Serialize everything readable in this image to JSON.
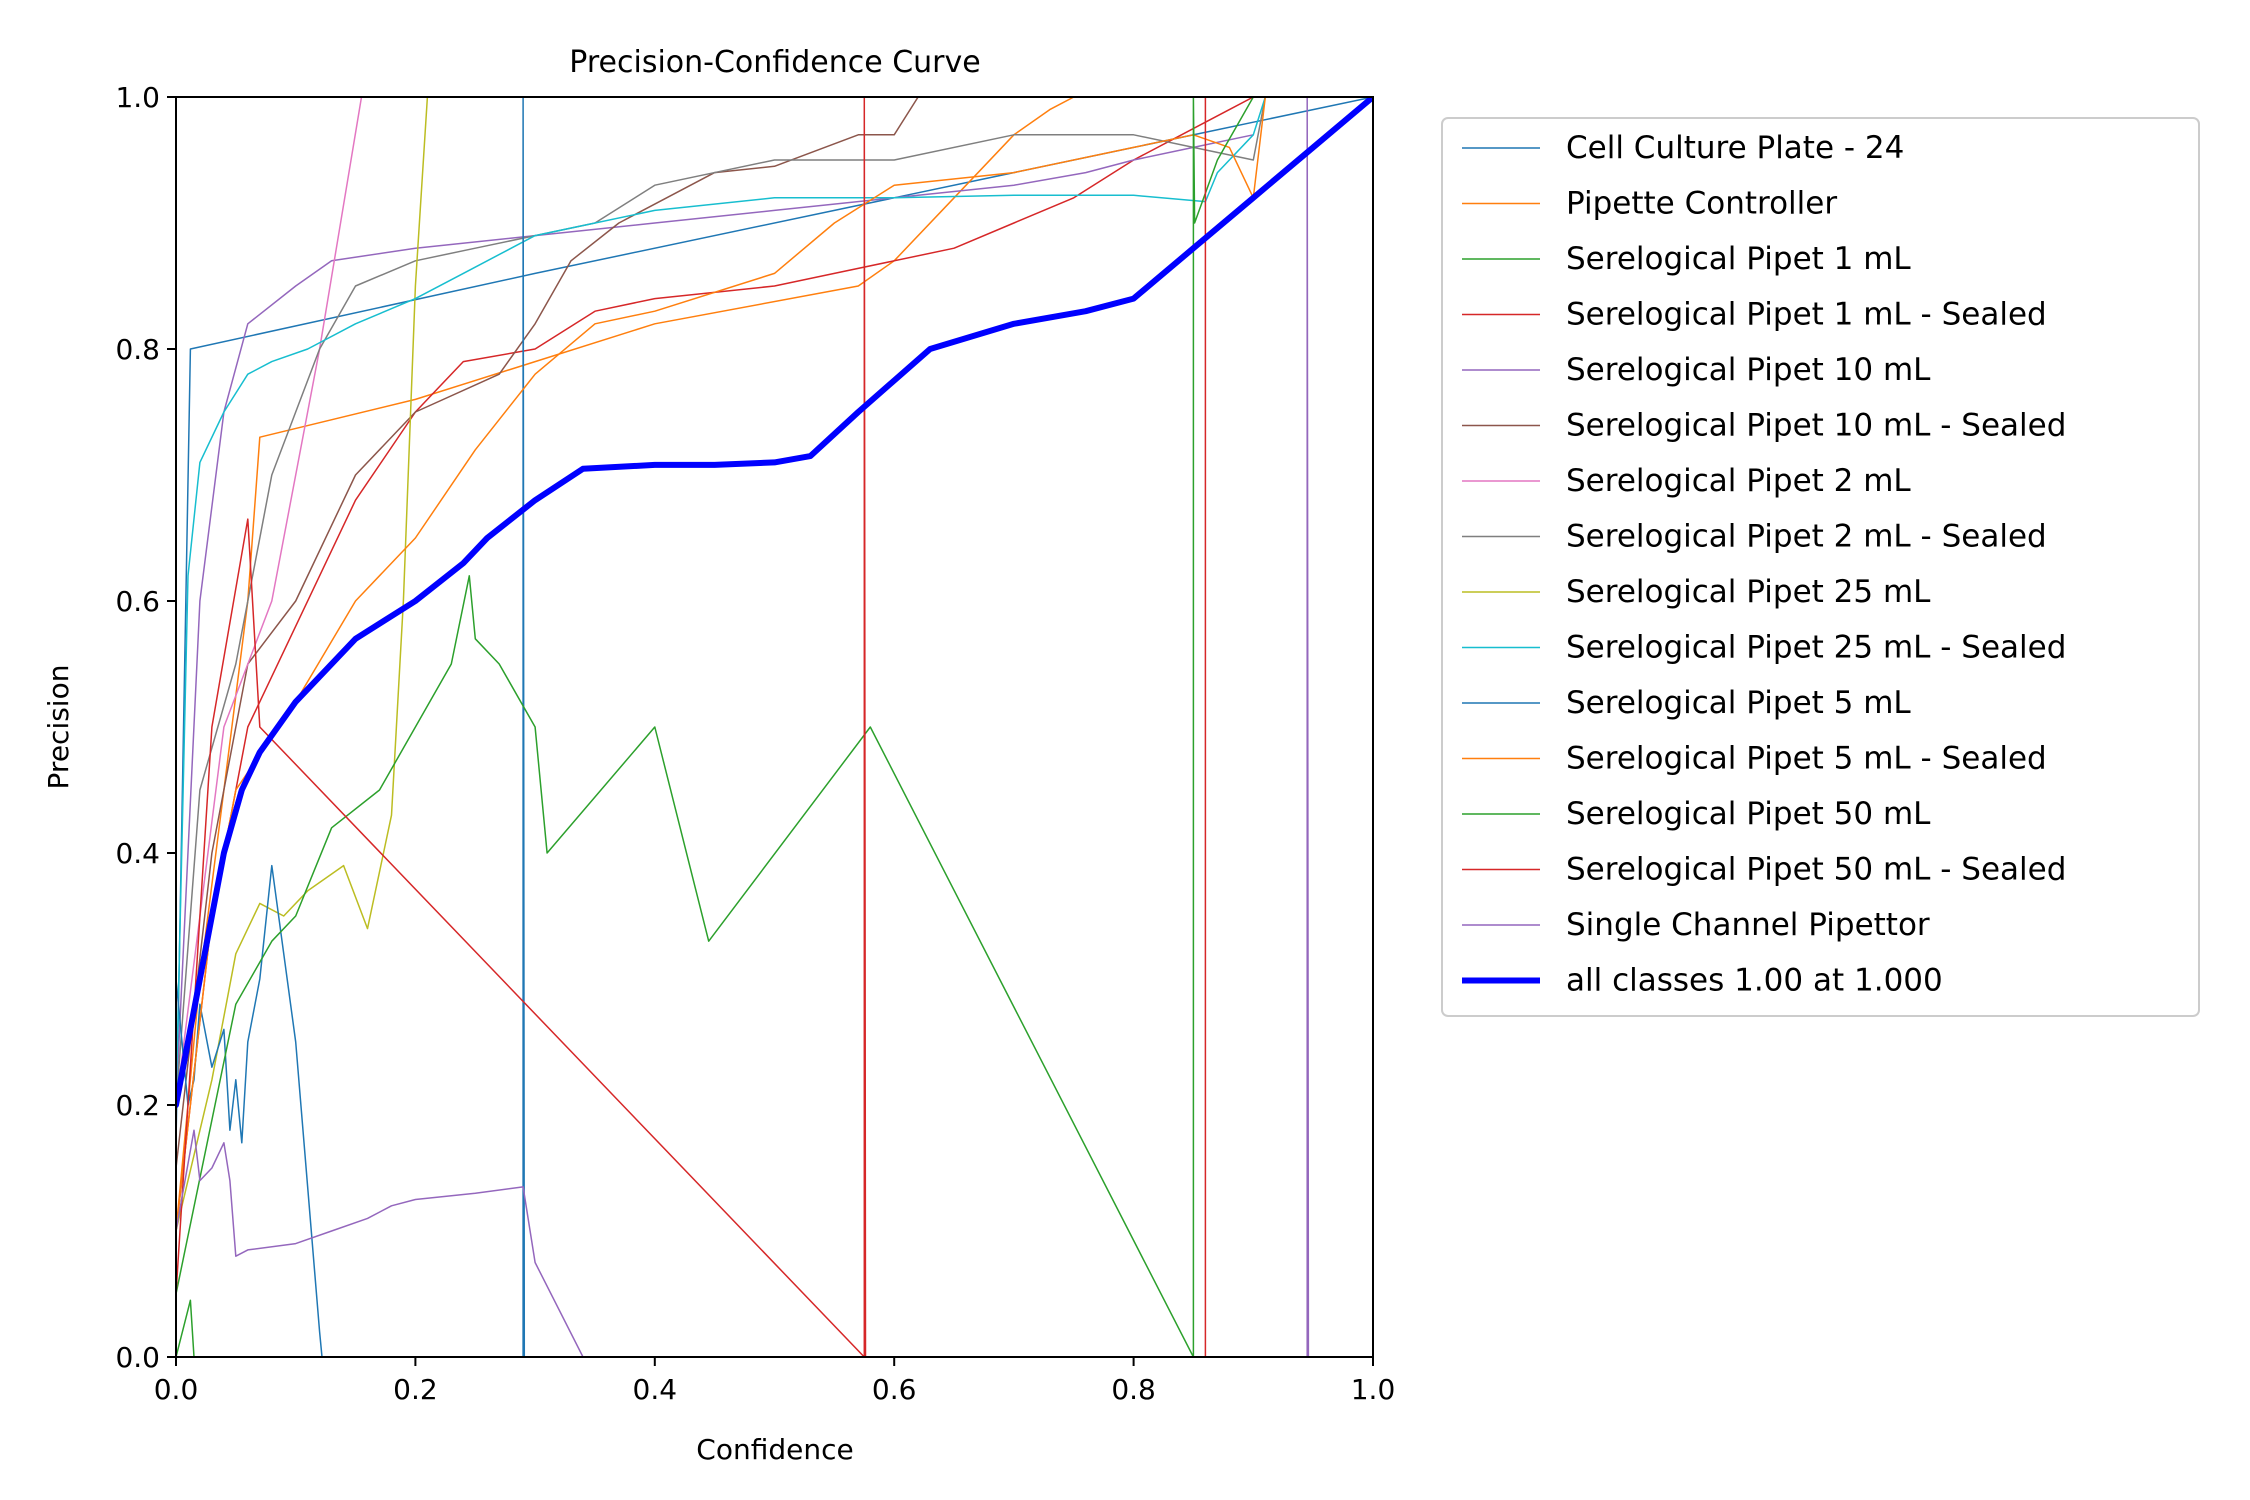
{
  "chart_data": {
    "type": "line",
    "title": "Precision-Confidence Curve",
    "xlabel": "Confidence",
    "ylabel": "Precision",
    "xlim": [
      0,
      1
    ],
    "ylim": [
      0,
      1
    ],
    "xticks": [
      "0.0",
      "0.2",
      "0.4",
      "0.6",
      "0.8",
      "1.0"
    ],
    "yticks": [
      "0.0",
      "0.2",
      "0.4",
      "0.6",
      "0.8",
      "1.0"
    ],
    "grid": false,
    "legend_position": "outside-right",
    "series": [
      {
        "name": "Cell Culture Plate - 24",
        "color": "#1f77b4",
        "width": 1.5,
        "x": [
          0.0,
          0.012,
          0.3,
          0.6,
          0.9,
          1.0
        ],
        "y": [
          0.17,
          0.8,
          0.86,
          0.92,
          0.98,
          1.0
        ]
      },
      {
        "name": "Pipette Controller",
        "color": "#ff7f0e",
        "width": 1.5,
        "x": [
          0.0,
          0.02,
          0.04,
          0.06,
          0.07,
          0.2,
          0.3,
          0.4,
          0.57,
          0.6,
          0.65,
          0.7,
          0.73,
          0.75
        ],
        "y": [
          0.1,
          0.3,
          0.45,
          0.6,
          0.73,
          0.76,
          0.79,
          0.82,
          0.85,
          0.87,
          0.92,
          0.97,
          0.99,
          1.0
        ]
      },
      {
        "name": "Serelogical Pipet 1 mL",
        "color": "#2ca02c",
        "width": 1.5,
        "x": [
          0.0,
          0.012,
          0.015,
          1.0
        ],
        "y": [
          0.0,
          0.045,
          0.0,
          0.0
        ]
      },
      {
        "name": "Serelogical Pipet 1 mL - Sealed",
        "color": "#d62728",
        "width": 1.5,
        "x": [
          0.0,
          0.03,
          0.06,
          0.1,
          0.15,
          0.2,
          0.24,
          0.3,
          0.35,
          0.4,
          0.5,
          0.55,
          0.65,
          0.7,
          0.75,
          0.8,
          0.84,
          0.86,
          0.88,
          0.9
        ],
        "y": [
          0.1,
          0.35,
          0.5,
          0.58,
          0.68,
          0.75,
          0.79,
          0.8,
          0.83,
          0.84,
          0.85,
          0.86,
          0.88,
          0.9,
          0.92,
          0.95,
          0.97,
          0.98,
          0.99,
          1.0
        ]
      },
      {
        "name": "Serelogical Pipet 10 mL",
        "color": "#9467bd",
        "width": 1.5,
        "x": [
          0.0,
          0.02,
          0.04,
          0.06,
          0.1,
          0.13,
          0.2,
          0.3,
          0.4,
          0.5,
          0.6,
          0.7,
          0.76,
          0.8,
          0.85,
          0.9
        ],
        "y": [
          0.2,
          0.6,
          0.75,
          0.82,
          0.85,
          0.87,
          0.88,
          0.89,
          0.9,
          0.91,
          0.92,
          0.93,
          0.94,
          0.95,
          0.96,
          0.97
        ]
      },
      {
        "name": "Serelogical Pipet 10 mL - Sealed",
        "color": "#8c564b",
        "width": 1.5,
        "x": [
          0.0,
          0.03,
          0.06,
          0.1,
          0.15,
          0.2,
          0.27,
          0.3,
          0.33,
          0.37,
          0.45,
          0.5,
          0.57,
          0.6,
          0.62
        ],
        "y": [
          0.15,
          0.4,
          0.55,
          0.6,
          0.7,
          0.75,
          0.78,
          0.82,
          0.87,
          0.9,
          0.94,
          0.945,
          0.97,
          0.97,
          1.0
        ]
      },
      {
        "name": "Serelogical Pipet 2 mL",
        "color": "#e377c2",
        "width": 1.5,
        "x": [
          0.0,
          0.04,
          0.08,
          0.12,
          0.155
        ],
        "y": [
          0.2,
          0.5,
          0.6,
          0.8,
          1.0
        ]
      },
      {
        "name": "Serelogical Pipet 2 mL - Sealed",
        "color": "#7f7f7f",
        "width": 1.5,
        "x": [
          0.0,
          0.02,
          0.05,
          0.08,
          0.1,
          0.12,
          0.15,
          0.2,
          0.25,
          0.3,
          0.35,
          0.4,
          0.5,
          0.6,
          0.7,
          0.75,
          0.8,
          0.85,
          0.9,
          0.91
        ],
        "y": [
          0.2,
          0.45,
          0.55,
          0.7,
          0.75,
          0.8,
          0.85,
          0.87,
          0.88,
          0.89,
          0.9,
          0.93,
          0.95,
          0.95,
          0.97,
          0.97,
          0.97,
          0.96,
          0.95,
          1.0
        ]
      },
      {
        "name": "Serelogical Pipet 25 mL",
        "color": "#bcbd22",
        "width": 1.5,
        "x": [
          0.0,
          0.03,
          0.05,
          0.07,
          0.09,
          0.11,
          0.14,
          0.16,
          0.18,
          0.19,
          0.2,
          0.21
        ],
        "y": [
          0.1,
          0.22,
          0.32,
          0.36,
          0.35,
          0.37,
          0.39,
          0.34,
          0.43,
          0.6,
          0.85,
          1.0
        ]
      },
      {
        "name": "Serelogical Pipet 25 mL - Sealed",
        "color": "#17becf",
        "width": 1.5,
        "x": [
          0.0,
          0.01,
          0.02,
          0.04,
          0.06,
          0.08,
          0.11,
          0.15,
          0.2,
          0.24,
          0.28,
          0.3,
          0.4,
          0.5,
          0.6,
          0.7,
          0.8,
          0.86,
          0.87,
          0.9,
          0.91
        ],
        "y": [
          0.2,
          0.62,
          0.71,
          0.75,
          0.78,
          0.79,
          0.8,
          0.82,
          0.84,
          0.86,
          0.88,
          0.89,
          0.91,
          0.92,
          0.92,
          0.922,
          0.922,
          0.917,
          0.94,
          0.97,
          1.0
        ]
      },
      {
        "name": "Serelogical Pipet 5 mL",
        "color": "#1f77b4",
        "width": 1.5,
        "x": [
          0.0,
          0.005,
          0.01,
          0.015,
          0.02,
          0.03,
          0.04,
          0.045,
          0.05,
          0.055,
          0.06,
          0.07,
          0.08,
          0.1,
          0.12,
          0.122,
          0.29,
          0.29,
          0.291,
          1.0
        ],
        "y": [
          0.3,
          0.25,
          0.2,
          0.22,
          0.28,
          0.23,
          0.26,
          0.18,
          0.22,
          0.17,
          0.25,
          0.3,
          0.39,
          0.25,
          0.02,
          0.0,
          0.0,
          1.0,
          0.0,
          0.0
        ]
      },
      {
        "name": "Serelogical Pipet 5 mL - Sealed",
        "color": "#ff7f0e",
        "width": 1.5,
        "x": [
          0.0,
          0.03,
          0.05,
          0.1,
          0.15,
          0.2,
          0.25,
          0.3,
          0.35,
          0.4,
          0.5,
          0.55,
          0.6,
          0.7,
          0.8,
          0.85,
          0.88,
          0.9,
          0.91
        ],
        "y": [
          0.1,
          0.35,
          0.45,
          0.52,
          0.6,
          0.65,
          0.72,
          0.78,
          0.82,
          0.83,
          0.86,
          0.9,
          0.93,
          0.94,
          0.96,
          0.97,
          0.96,
          0.92,
          1.0
        ]
      },
      {
        "name": "Serelogical Pipet 50 mL",
        "color": "#2ca02c",
        "width": 1.5,
        "x": [
          0.0,
          0.05,
          0.08,
          0.1,
          0.13,
          0.17,
          0.2,
          0.23,
          0.245,
          0.25,
          0.27,
          0.3,
          0.31,
          0.4,
          0.445,
          0.58,
          0.85,
          0.85,
          0.851,
          0.87,
          0.9
        ],
        "y": [
          0.05,
          0.28,
          0.33,
          0.35,
          0.42,
          0.45,
          0.5,
          0.55,
          0.62,
          0.57,
          0.55,
          0.5,
          0.4,
          0.5,
          0.33,
          0.5,
          0.0,
          1.0,
          0.9,
          0.95,
          1.0
        ]
      },
      {
        "name": "Serelogical Pipet 50 mL - Sealed",
        "color": "#d62728",
        "width": 1.5,
        "x": [
          0.0,
          0.03,
          0.06,
          0.07,
          0.575,
          0.575,
          0.576,
          0.86,
          0.86
        ],
        "y": [
          0.05,
          0.5,
          0.665,
          0.5,
          0.0,
          1.0,
          0.0,
          0.0,
          1.0
        ]
      },
      {
        "name": "Single Channel Pipettor",
        "color": "#9467bd",
        "width": 1.5,
        "x": [
          0.0,
          0.015,
          0.02,
          0.03,
          0.04,
          0.045,
          0.05,
          0.06,
          0.1,
          0.13,
          0.16,
          0.18,
          0.2,
          0.25,
          0.29,
          0.3,
          0.34,
          0.345,
          0.945,
          0.945,
          0.946
        ],
        "y": [
          0.1,
          0.18,
          0.14,
          0.15,
          0.17,
          0.14,
          0.08,
          0.085,
          0.09,
          0.1,
          0.11,
          0.12,
          0.125,
          0.13,
          0.135,
          0.075,
          0.0,
          0.0,
          0.0,
          1.0,
          0.0
        ]
      },
      {
        "name": "all classes 1.00 at 1.000",
        "color": "#0000ff",
        "width": 6,
        "x": [
          0.0,
          0.02,
          0.04,
          0.055,
          0.07,
          0.1,
          0.15,
          0.2,
          0.24,
          0.26,
          0.3,
          0.34,
          0.4,
          0.45,
          0.5,
          0.53,
          0.57,
          0.63,
          0.7,
          0.76,
          0.8,
          0.85,
          0.9,
          0.95,
          1.0
        ],
        "y": [
          0.2,
          0.3,
          0.4,
          0.45,
          0.48,
          0.52,
          0.57,
          0.6,
          0.63,
          0.65,
          0.68,
          0.705,
          0.708,
          0.708,
          0.71,
          0.715,
          0.75,
          0.8,
          0.82,
          0.83,
          0.84,
          0.88,
          0.92,
          0.96,
          1.0
        ]
      }
    ]
  }
}
